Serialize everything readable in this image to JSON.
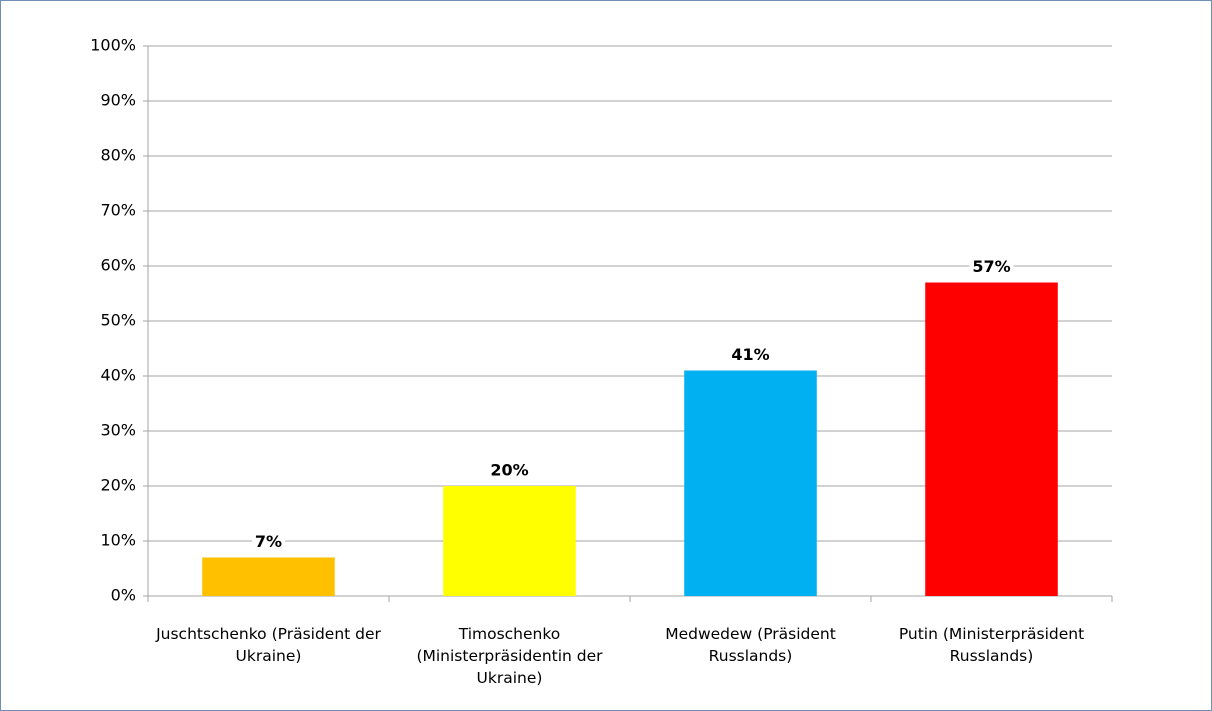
{
  "chart_data": {
    "type": "bar",
    "categories": [
      "Juschtschenko (Präsident der Ukraine)",
      "Timoschenko (Ministerpräsidentin der Ukraine)",
      "Medwedew (Präsident Russlands)",
      "Putin (Ministerpräsident Russlands)"
    ],
    "values": [
      7,
      20,
      41,
      57
    ],
    "value_labels": [
      "7%",
      "20%",
      "41%",
      "57%"
    ],
    "colors": [
      "#ffc000",
      "#ffff00",
      "#00b0f0",
      "#ff0000"
    ],
    "ylim": [
      0,
      100
    ],
    "yticks": [
      {
        "value": 0,
        "label": "0%"
      },
      {
        "value": 10,
        "label": "10%"
      },
      {
        "value": 20,
        "label": "20%"
      },
      {
        "value": 30,
        "label": "30%"
      },
      {
        "value": 40,
        "label": "40%"
      },
      {
        "value": 50,
        "label": "50%"
      },
      {
        "value": 60,
        "label": "60%"
      },
      {
        "value": 70,
        "label": "70%"
      },
      {
        "value": 80,
        "label": "80%"
      },
      {
        "value": 90,
        "label": "90%"
      },
      {
        "value": 100,
        "label": "100%"
      }
    ],
    "grid": true
  }
}
